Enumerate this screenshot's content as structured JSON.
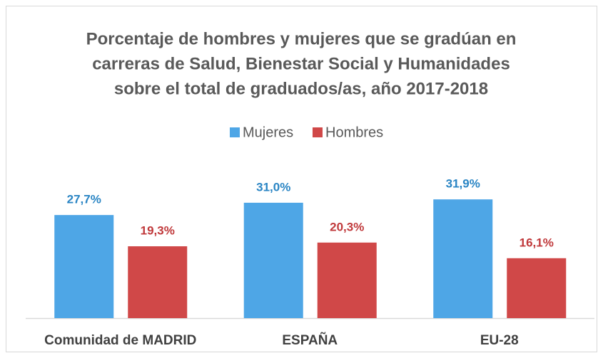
{
  "chart_data": {
    "type": "bar",
    "title": [
      "Porcentaje de hombres y mujeres que se gradúan en",
      "carreras de Salud, Bienestar Social y Humanidades",
      "sobre el total de graduados/as, año 2017-2018"
    ],
    "categories": [
      "Comunidad de MADRID",
      "ESPAÑA",
      "EU-28"
    ],
    "series": [
      {
        "name": "Mujeres",
        "color": "#4ea6e6",
        "label_color": "#2a85c4",
        "values": [
          27.7,
          31.0,
          31.9
        ],
        "value_labels": [
          "27,7%",
          "31,0%",
          "31,9%"
        ]
      },
      {
        "name": "Hombres",
        "color": "#d04848",
        "label_color": "#c0393b",
        "values": [
          19.3,
          20.3,
          16.1
        ],
        "value_labels": [
          "19,3%",
          "20,3%",
          "16,1%"
        ]
      }
    ],
    "legend": "top"
  }
}
